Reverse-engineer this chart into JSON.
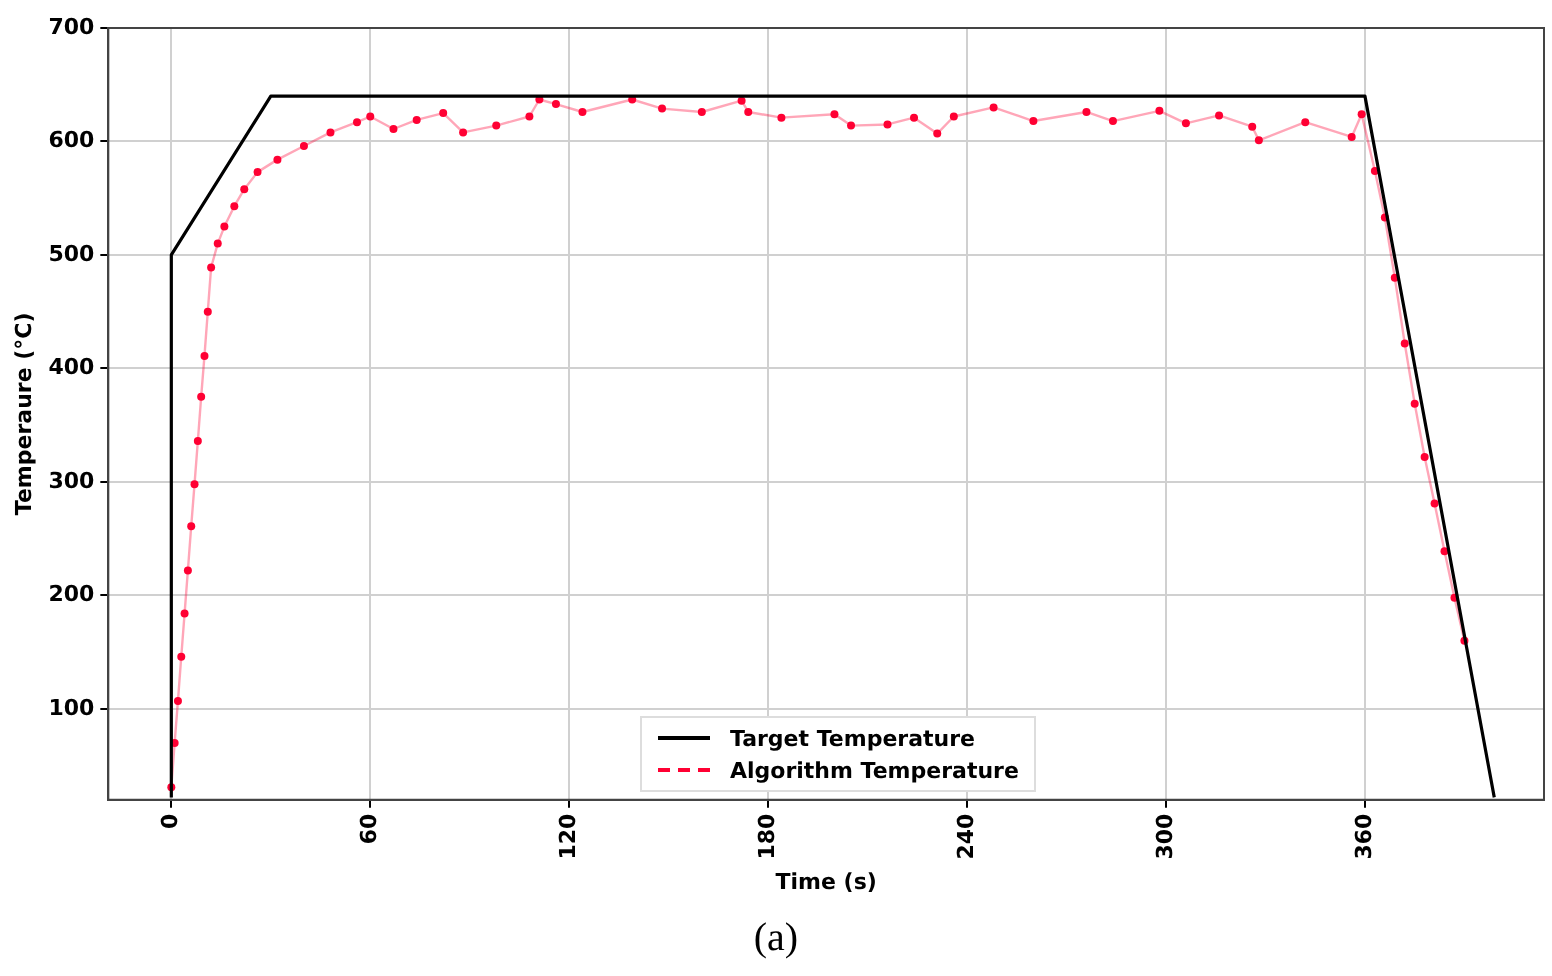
{
  "chart_data": {
    "type": "line",
    "xlabel": "Time (s)",
    "ylabel": "Temperaure (°C)",
    "xlim": [
      -19,
      414
    ],
    "ylim": [
      20,
      700
    ],
    "xticks": [
      0,
      60,
      120,
      180,
      240,
      300,
      360
    ],
    "yticks": [
      100,
      200,
      300,
      400,
      500,
      600,
      700
    ],
    "grid": true,
    "legend": "bottom",
    "annotations": [
      "(a)"
    ],
    "series": [
      {
        "name": "Target Temperature",
        "color": "#000000",
        "marker": "none",
        "x": [
          0,
          0,
          30,
          360,
          399
        ],
        "values": [
          22,
          500,
          640,
          640,
          22
        ]
      },
      {
        "name": "Algorithm Temperature",
        "color": "#ff0033",
        "marker": "circle",
        "x": [
          0,
          1,
          2,
          3,
          4,
          5,
          6,
          7,
          8,
          9,
          10,
          11,
          12,
          14,
          16,
          19,
          22,
          26,
          32,
          40,
          48,
          56,
          60,
          67,
          74,
          82,
          88,
          98,
          108,
          111,
          116,
          124,
          139,
          148,
          160,
          172,
          174,
          184,
          200,
          205,
          216,
          224,
          231,
          236,
          248,
          260,
          276,
          284,
          298,
          306,
          316,
          326,
          328,
          342,
          356,
          359,
          363,
          366,
          369,
          372,
          375,
          378,
          381,
          384,
          387,
          390
        ],
        "values": [
          31,
          70,
          107,
          146,
          184,
          222,
          261,
          298,
          336,
          375,
          411,
          450,
          489,
          510,
          525,
          543,
          558,
          573,
          584,
          596,
          608,
          617,
          622,
          611,
          619,
          625,
          608,
          614,
          622,
          637,
          633,
          626,
          637,
          629,
          626,
          636,
          626,
          621,
          624,
          614,
          615,
          621,
          607,
          622,
          630,
          618,
          626,
          618,
          627,
          616,
          623,
          613,
          601,
          617,
          604,
          624,
          574,
          533,
          480,
          422,
          369,
          322,
          281,
          239,
          198,
          160
        ]
      }
    ]
  }
}
